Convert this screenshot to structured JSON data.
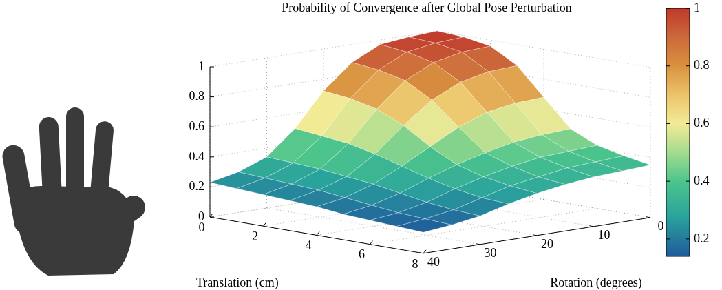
{
  "chart_data": {
    "type": "surface",
    "title": "Probability of Convergence after Global Pose Perturbation",
    "x_label": "Translation (cm)",
    "y_label": "Rotation (degrees)",
    "x": [
      0,
      1,
      2,
      3,
      4,
      5,
      6,
      7,
      8
    ],
    "y": [
      0,
      5,
      10,
      15,
      20,
      25,
      30,
      35,
      40
    ],
    "z": [
      [
        1.0,
        0.99,
        0.97,
        0.88,
        0.72,
        0.5,
        0.34,
        0.27,
        0.23
      ],
      [
        0.99,
        0.98,
        0.95,
        0.86,
        0.7,
        0.48,
        0.33,
        0.26,
        0.22
      ],
      [
        0.96,
        0.95,
        0.91,
        0.82,
        0.66,
        0.46,
        0.32,
        0.25,
        0.21
      ],
      [
        0.86,
        0.85,
        0.81,
        0.72,
        0.58,
        0.42,
        0.3,
        0.24,
        0.2
      ],
      [
        0.68,
        0.67,
        0.64,
        0.57,
        0.47,
        0.37,
        0.28,
        0.22,
        0.19
      ],
      [
        0.5,
        0.49,
        0.47,
        0.43,
        0.38,
        0.32,
        0.25,
        0.2,
        0.17
      ],
      [
        0.42,
        0.41,
        0.4,
        0.37,
        0.33,
        0.28,
        0.22,
        0.18,
        0.16
      ],
      [
        0.38,
        0.37,
        0.36,
        0.33,
        0.3,
        0.25,
        0.2,
        0.17,
        0.15
      ],
      [
        0.35,
        0.34,
        0.33,
        0.31,
        0.28,
        0.24,
        0.19,
        0.16,
        0.14
      ]
    ],
    "xlim": [
      0,
      8
    ],
    "xticks": [
      0,
      2,
      4,
      6,
      8
    ],
    "ylim": [
      0,
      40
    ],
    "yticks": [
      0,
      10,
      20,
      30,
      40
    ],
    "zlim": [
      0,
      1
    ],
    "zticks": [
      0,
      0.2,
      0.4,
      0.6,
      0.8,
      1
    ],
    "colorbar": {
      "range": [
        0.14,
        1
      ],
      "ticks": [
        0.2,
        0.4,
        0.6,
        0.8,
        1
      ]
    },
    "grid": true
  }
}
